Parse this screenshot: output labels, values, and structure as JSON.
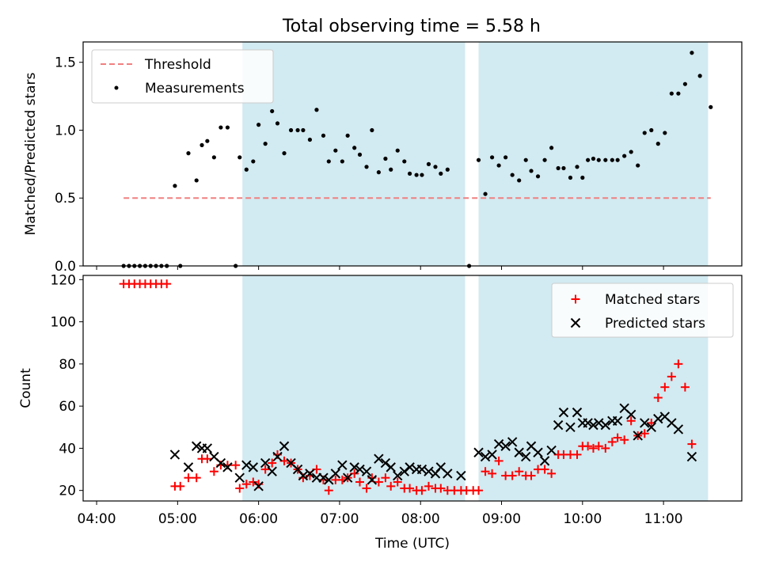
{
  "figure": {
    "title": "Total observing time = 5.58 h",
    "xlabel": "Time (UTC)"
  },
  "chart_data": [
    {
      "type": "scatter",
      "panel": "top",
      "ylabel": "Matched/Predicted stars",
      "xlim": [
        "03:50",
        "11:58"
      ],
      "ylim": [
        0,
        1.65
      ],
      "yticks": [
        0.0,
        0.5,
        1.0,
        1.5
      ],
      "ytick_labels": [
        "0.0",
        "0.5",
        "1.0",
        "1.5"
      ],
      "grid": false,
      "legend": {
        "placement": "top-left",
        "entries": [
          "Threshold",
          "Measurements"
        ]
      },
      "shaded_intervals": [
        [
          "05:48",
          "08:33"
        ],
        [
          "08:43",
          "11:33"
        ]
      ],
      "shade_color": "#add8e6",
      "threshold": {
        "name": "Threshold",
        "value": 0.5,
        "x_range": [
          "04:20",
          "11:35"
        ],
        "color": "#f08080"
      },
      "measurements": {
        "name": "Measurements",
        "color": "#000000",
        "points": [
          [
            "04:20",
            0.0
          ],
          [
            "04:24",
            0.0
          ],
          [
            "04:28",
            0.0
          ],
          [
            "04:32",
            0.0
          ],
          [
            "04:36",
            0.0
          ],
          [
            "04:40",
            0.0
          ],
          [
            "04:44",
            0.0
          ],
          [
            "04:48",
            0.0
          ],
          [
            "04:52",
            0.0
          ],
          [
            "04:58",
            0.59
          ],
          [
            "05:02",
            0.0
          ],
          [
            "05:08",
            0.83
          ],
          [
            "05:14",
            0.63
          ],
          [
            "05:18",
            0.89
          ],
          [
            "05:22",
            0.92
          ],
          [
            "05:27",
            0.8
          ],
          [
            "05:32",
            1.02
          ],
          [
            "05:37",
            1.02
          ],
          [
            "05:43",
            0.0
          ],
          [
            "05:46",
            0.8
          ],
          [
            "05:51",
            0.71
          ],
          [
            "05:56",
            0.77
          ],
          [
            "06:00",
            1.04
          ],
          [
            "06:05",
            0.9
          ],
          [
            "06:10",
            1.14
          ],
          [
            "06:14",
            1.05
          ],
          [
            "06:19",
            0.83
          ],
          [
            "06:24",
            1.0
          ],
          [
            "06:29",
            1.0
          ],
          [
            "06:33",
            1.0
          ],
          [
            "06:38",
            0.93
          ],
          [
            "06:43",
            1.15
          ],
          [
            "06:48",
            0.96
          ],
          [
            "06:52",
            0.77
          ],
          [
            "06:57",
            0.85
          ],
          [
            "07:02",
            0.77
          ],
          [
            "07:06",
            0.96
          ],
          [
            "07:11",
            0.87
          ],
          [
            "07:15",
            0.82
          ],
          [
            "07:20",
            0.73
          ],
          [
            "07:24",
            1.0
          ],
          [
            "07:29",
            0.69
          ],
          [
            "07:34",
            0.79
          ],
          [
            "07:38",
            0.71
          ],
          [
            "07:43",
            0.85
          ],
          [
            "07:48",
            0.77
          ],
          [
            "07:52",
            0.68
          ],
          [
            "07:57",
            0.67
          ],
          [
            "08:01",
            0.67
          ],
          [
            "08:06",
            0.75
          ],
          [
            "08:11",
            0.73
          ],
          [
            "08:15",
            0.68
          ],
          [
            "08:20",
            0.71
          ],
          [
            "08:36",
            0.0
          ],
          [
            "08:43",
            0.78
          ],
          [
            "08:48",
            0.53
          ],
          [
            "08:53",
            0.8
          ],
          [
            "08:58",
            0.74
          ],
          [
            "09:03",
            0.8
          ],
          [
            "09:08",
            0.67
          ],
          [
            "09:13",
            0.63
          ],
          [
            "09:18",
            0.78
          ],
          [
            "09:22",
            0.7
          ],
          [
            "09:27",
            0.66
          ],
          [
            "09:32",
            0.78
          ],
          [
            "09:37",
            0.87
          ],
          [
            "09:42",
            0.72
          ],
          [
            "09:46",
            0.72
          ],
          [
            "09:51",
            0.65
          ],
          [
            "09:56",
            0.73
          ],
          [
            "10:00",
            0.65
          ],
          [
            "10:04",
            0.78
          ],
          [
            "10:08",
            0.79
          ],
          [
            "10:12",
            0.78
          ],
          [
            "10:17",
            0.78
          ],
          [
            "10:22",
            0.78
          ],
          [
            "10:26",
            0.78
          ],
          [
            "10:31",
            0.81
          ],
          [
            "10:36",
            0.84
          ],
          [
            "10:41",
            0.74
          ],
          [
            "10:46",
            0.98
          ],
          [
            "10:51",
            1.0
          ],
          [
            "10:56",
            0.9
          ],
          [
            "11:01",
            0.98
          ],
          [
            "11:06",
            1.27
          ],
          [
            "11:11",
            1.27
          ],
          [
            "11:16",
            1.34
          ],
          [
            "11:21",
            1.57
          ],
          [
            "11:27",
            1.4
          ],
          [
            "11:35",
            1.17
          ]
        ]
      }
    },
    {
      "type": "scatter",
      "panel": "bottom",
      "ylabel": "Count",
      "xlim": [
        "03:50",
        "11:58"
      ],
      "ylim": [
        15,
        122
      ],
      "yticks": [
        20,
        40,
        60,
        80,
        100,
        120
      ],
      "ytick_labels": [
        "20",
        "40",
        "60",
        "80",
        "100",
        "120"
      ],
      "xticks": [
        "04:00",
        "05:00",
        "06:00",
        "07:00",
        "08:00",
        "09:00",
        "10:00",
        "11:00"
      ],
      "xtick_labels": [
        "04:00",
        "05:00",
        "06:00",
        "07:00",
        "08:00",
        "09:00",
        "10:00",
        "11:00"
      ],
      "grid": false,
      "legend": {
        "placement": "top-right",
        "entries": [
          "Matched stars",
          "Predicted stars"
        ]
      },
      "shaded_intervals": [
        [
          "05:48",
          "08:33"
        ],
        [
          "08:43",
          "11:33"
        ]
      ],
      "shade_color": "#add8e6",
      "series": [
        {
          "name": "Matched stars",
          "marker": "plus",
          "color": "#ff0000",
          "points": [
            [
              "04:20",
              118
            ],
            [
              "04:24",
              118
            ],
            [
              "04:28",
              118
            ],
            [
              "04:32",
              118
            ],
            [
              "04:36",
              118
            ],
            [
              "04:40",
              118
            ],
            [
              "04:44",
              118
            ],
            [
              "04:48",
              118
            ],
            [
              "04:52",
              118
            ],
            [
              "04:58",
              22
            ],
            [
              "05:02",
              22
            ],
            [
              "05:08",
              26
            ],
            [
              "05:14",
              26
            ],
            [
              "05:18",
              35
            ],
            [
              "05:22",
              35
            ],
            [
              "05:27",
              29
            ],
            [
              "05:32",
              32
            ],
            [
              "05:37",
              32
            ],
            [
              "05:43",
              32
            ],
            [
              "05:46",
              21
            ],
            [
              "05:51",
              23
            ],
            [
              "05:56",
              24
            ],
            [
              "06:00",
              23
            ],
            [
              "06:05",
              30
            ],
            [
              "06:10",
              33
            ],
            [
              "06:14",
              37
            ],
            [
              "06:19",
              34
            ],
            [
              "06:24",
              33
            ],
            [
              "06:29",
              30
            ],
            [
              "06:33",
              26
            ],
            [
              "06:38",
              27
            ],
            [
              "06:43",
              30
            ],
            [
              "06:48",
              25
            ],
            [
              "06:52",
              20
            ],
            [
              "06:57",
              25
            ],
            [
              "07:02",
              25
            ],
            [
              "07:06",
              26
            ],
            [
              "07:11",
              28
            ],
            [
              "07:15",
              24
            ],
            [
              "07:20",
              21
            ],
            [
              "07:24",
              26
            ],
            [
              "07:29",
              24
            ],
            [
              "07:34",
              26
            ],
            [
              "07:38",
              22
            ],
            [
              "07:43",
              24
            ],
            [
              "07:48",
              21
            ],
            [
              "07:52",
              21
            ],
            [
              "07:57",
              20
            ],
            [
              "08:01",
              20
            ],
            [
              "08:06",
              22
            ],
            [
              "08:11",
              21
            ],
            [
              "08:15",
              21
            ],
            [
              "08:20",
              20
            ],
            [
              "08:25",
              20
            ],
            [
              "08:30",
              20
            ],
            [
              "08:34",
              20
            ],
            [
              "08:39",
              20
            ],
            [
              "08:43",
              20
            ],
            [
              "08:48",
              29
            ],
            [
              "08:53",
              28
            ],
            [
              "08:58",
              34
            ],
            [
              "09:03",
              27
            ],
            [
              "09:08",
              27
            ],
            [
              "09:13",
              29
            ],
            [
              "09:18",
              27
            ],
            [
              "09:22",
              27
            ],
            [
              "09:27",
              30
            ],
            [
              "09:32",
              30
            ],
            [
              "09:37",
              28
            ],
            [
              "09:42",
              37
            ],
            [
              "09:46",
              37
            ],
            [
              "09:51",
              37
            ],
            [
              "09:56",
              37
            ],
            [
              "10:00",
              41
            ],
            [
              "10:04",
              41
            ],
            [
              "10:08",
              40
            ],
            [
              "10:12",
              41
            ],
            [
              "10:17",
              40
            ],
            [
              "10:22",
              43
            ],
            [
              "10:26",
              45
            ],
            [
              "10:31",
              44
            ],
            [
              "10:36",
              53
            ],
            [
              "10:41",
              46
            ],
            [
              "10:46",
              47
            ],
            [
              "10:51",
              52
            ],
            [
              "10:56",
              64
            ],
            [
              "11:01",
              69
            ],
            [
              "11:06",
              74
            ],
            [
              "11:11",
              80
            ],
            [
              "11:16",
              69
            ],
            [
              "11:21",
              42
            ]
          ]
        },
        {
          "name": "Predicted stars",
          "marker": "x",
          "color": "#000000",
          "points": [
            [
              "04:58",
              37
            ],
            [
              "05:08",
              31
            ],
            [
              "05:14",
              41
            ],
            [
              "05:18",
              40
            ],
            [
              "05:22",
              40
            ],
            [
              "05:27",
              36
            ],
            [
              "05:32",
              33
            ],
            [
              "05:37",
              31
            ],
            [
              "05:46",
              26
            ],
            [
              "05:51",
              32
            ],
            [
              "05:56",
              31
            ],
            [
              "06:00",
              22
            ],
            [
              "06:05",
              33
            ],
            [
              "06:10",
              29
            ],
            [
              "06:14",
              36
            ],
            [
              "06:19",
              41
            ],
            [
              "06:24",
              33
            ],
            [
              "06:29",
              30
            ],
            [
              "06:33",
              27
            ],
            [
              "06:38",
              28
            ],
            [
              "06:43",
              26
            ],
            [
              "06:48",
              26
            ],
            [
              "06:52",
              25
            ],
            [
              "06:57",
              28
            ],
            [
              "07:02",
              32
            ],
            [
              "07:06",
              26
            ],
            [
              "07:11",
              31
            ],
            [
              "07:15",
              30
            ],
            [
              "07:20",
              29
            ],
            [
              "07:24",
              25
            ],
            [
              "07:29",
              35
            ],
            [
              "07:34",
              33
            ],
            [
              "07:38",
              31
            ],
            [
              "07:43",
              27
            ],
            [
              "07:48",
              29
            ],
            [
              "07:52",
              31
            ],
            [
              "07:57",
              30
            ],
            [
              "08:01",
              30
            ],
            [
              "08:06",
              29
            ],
            [
              "08:11",
              28
            ],
            [
              "08:15",
              31
            ],
            [
              "08:20",
              28
            ],
            [
              "08:30",
              27
            ],
            [
              "08:43",
              38
            ],
            [
              "08:48",
              36
            ],
            [
              "08:53",
              37
            ],
            [
              "08:58",
              42
            ],
            [
              "09:03",
              41
            ],
            [
              "09:08",
              43
            ],
            [
              "09:13",
              38
            ],
            [
              "09:18",
              36
            ],
            [
              "09:22",
              41
            ],
            [
              "09:27",
              38
            ],
            [
              "09:32",
              34
            ],
            [
              "09:37",
              39
            ],
            [
              "09:42",
              51
            ],
            [
              "09:46",
              57
            ],
            [
              "09:51",
              50
            ],
            [
              "09:56",
              57
            ],
            [
              "10:00",
              52
            ],
            [
              "10:04",
              52
            ],
            [
              "10:08",
              51
            ],
            [
              "10:12",
              52
            ],
            [
              "10:17",
              51
            ],
            [
              "10:22",
              53
            ],
            [
              "10:26",
              53
            ],
            [
              "10:31",
              59
            ],
            [
              "10:36",
              56
            ],
            [
              "10:41",
              46
            ],
            [
              "10:46",
              52
            ],
            [
              "10:51",
              50
            ],
            [
              "10:56",
              54
            ],
            [
              "11:01",
              55
            ],
            [
              "11:06",
              52
            ],
            [
              "11:11",
              49
            ],
            [
              "11:21",
              36
            ]
          ]
        }
      ]
    }
  ]
}
